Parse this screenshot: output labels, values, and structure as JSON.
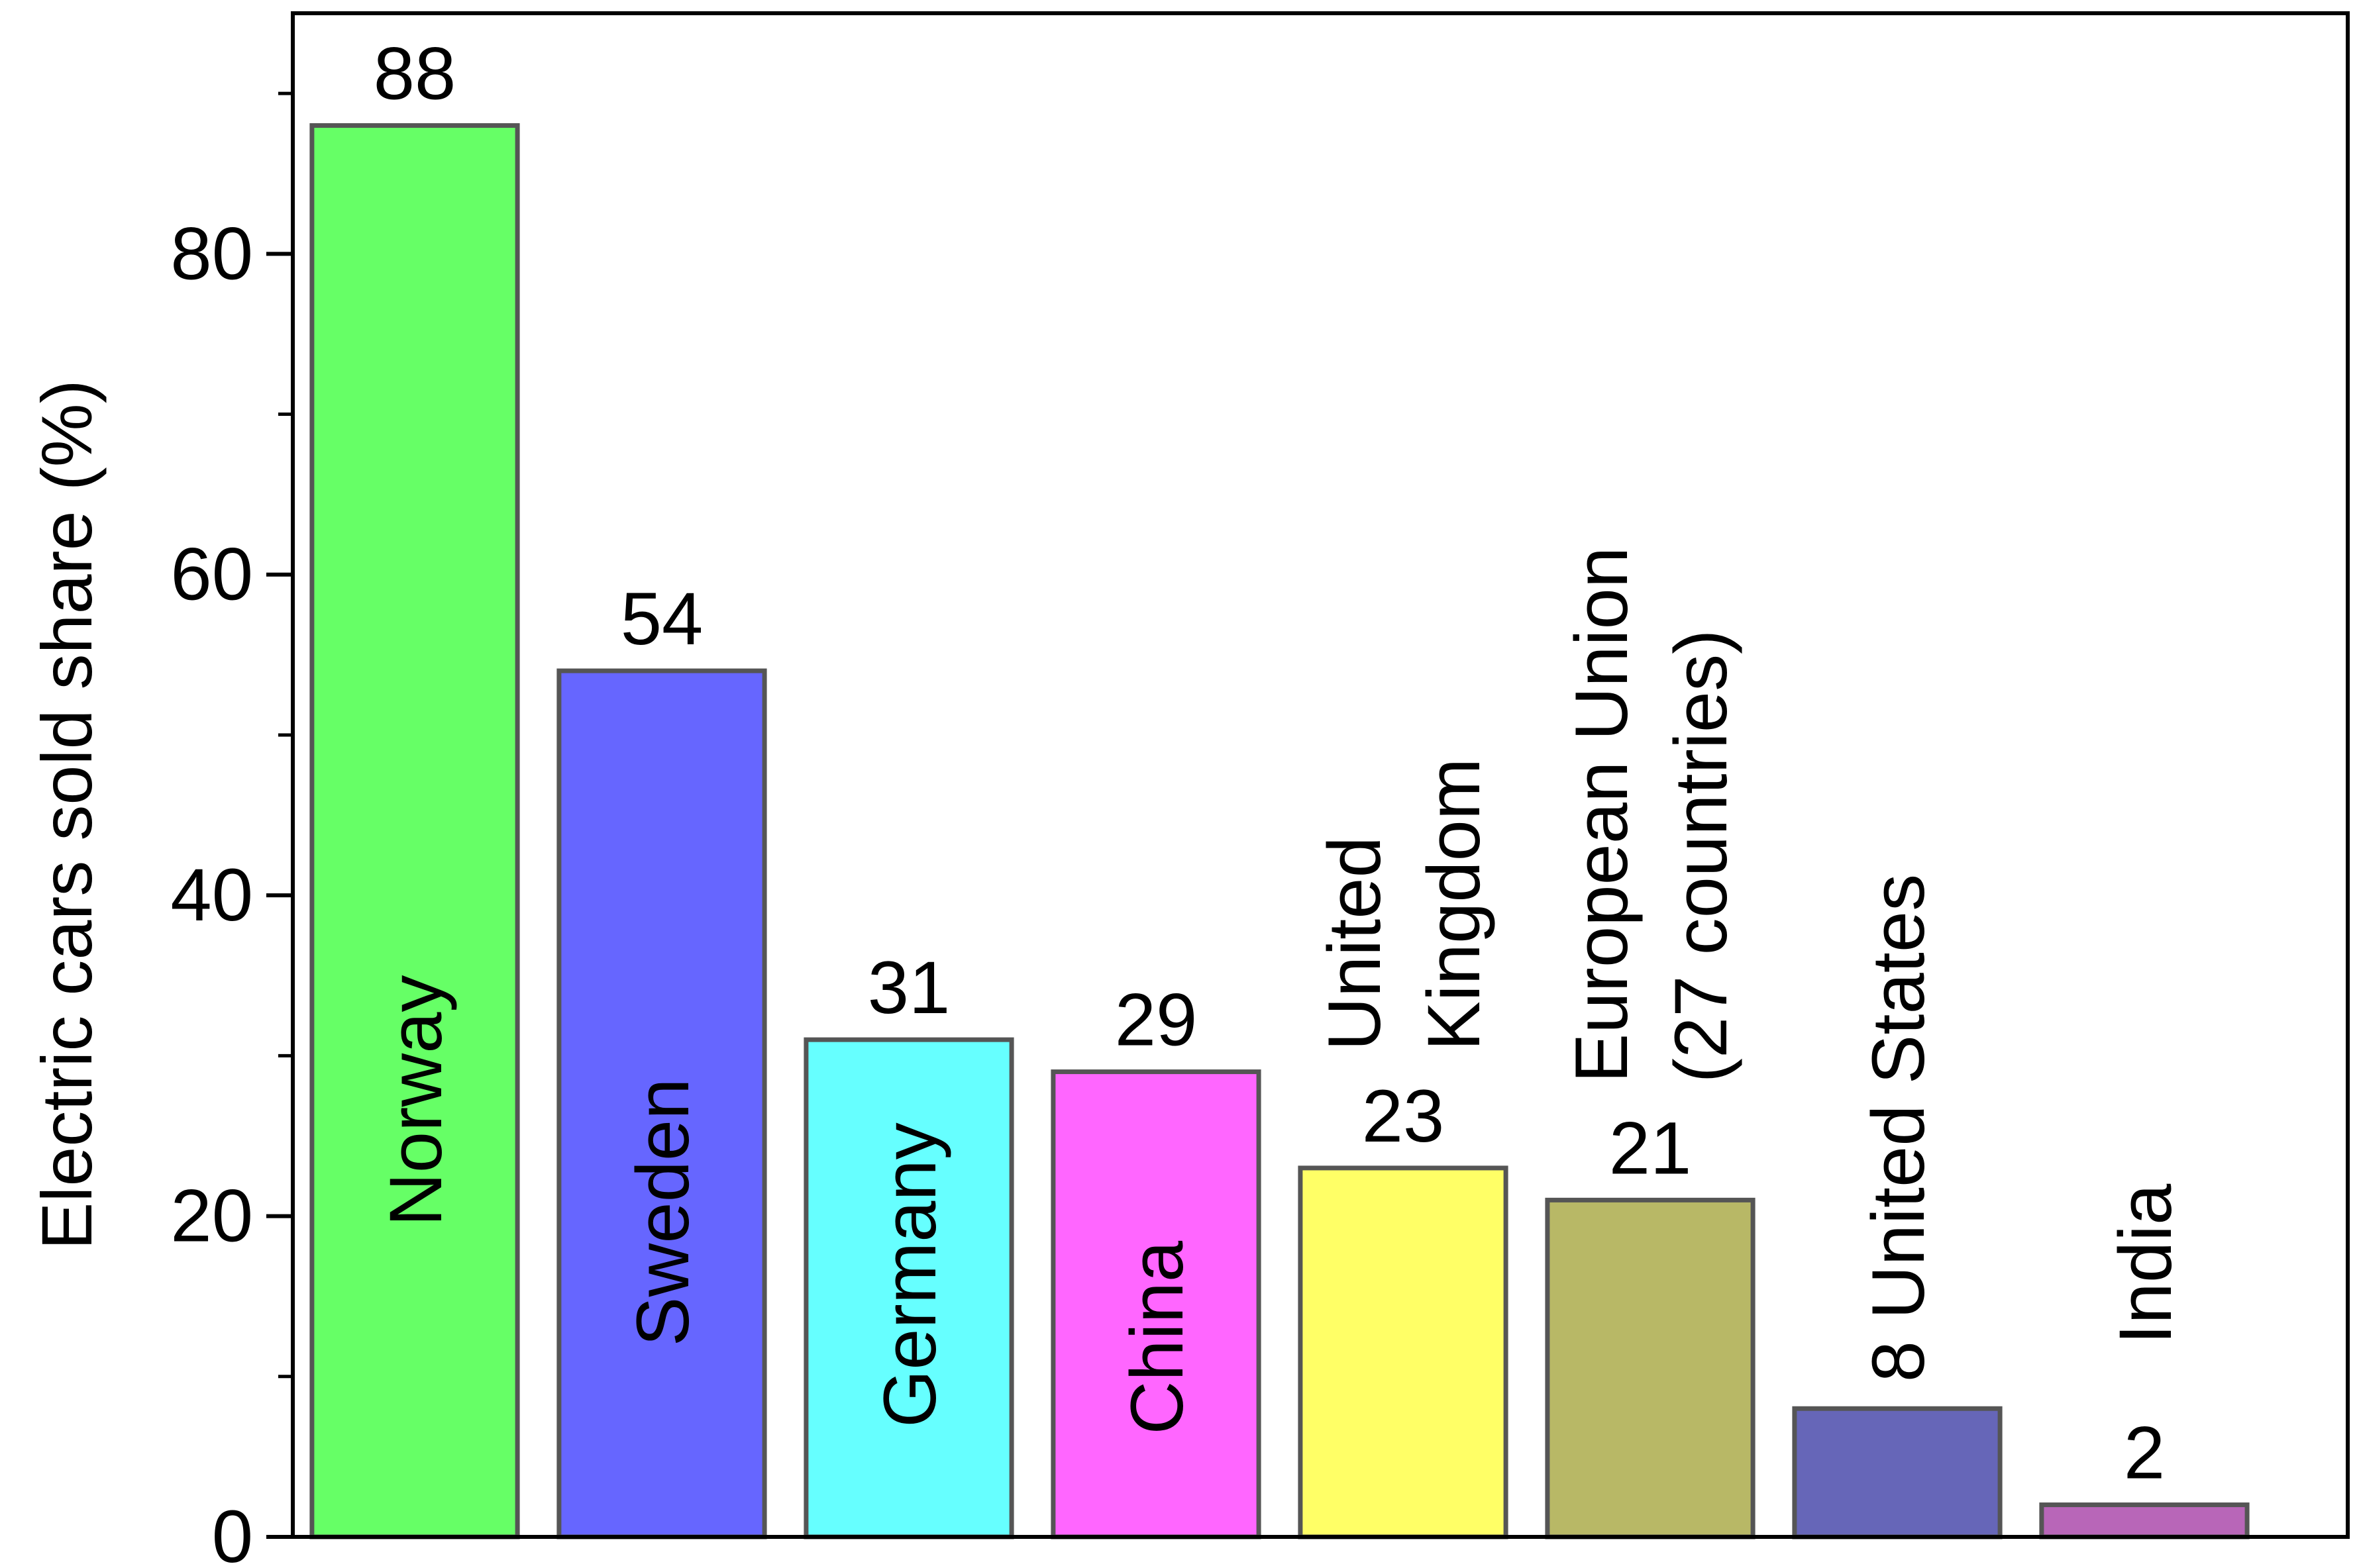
{
  "chart_data": {
    "type": "bar",
    "ylabel": "Electric cars sold share (%)",
    "ylim": [
      0,
      95
    ],
    "yticks": [
      0,
      20,
      40,
      60,
      80
    ],
    "y_minor_step": 10,
    "legend": "none",
    "grid": false,
    "categories": [
      "Norway",
      "Sweden",
      "Germany",
      "China",
      "United Kingdom",
      "European Union (27 countries)",
      "United States",
      "India"
    ],
    "category_label_lines": [
      [
        "Norway"
      ],
      [
        "Sweden"
      ],
      [
        "Germany"
      ],
      [
        "China"
      ],
      [
        "United",
        "Kingdom"
      ],
      [
        "European Union",
        "(27 countries)"
      ],
      [
        "United States"
      ],
      [
        "India"
      ]
    ],
    "category_label_placement": [
      "inside",
      "inside",
      "inside",
      "inside",
      "above",
      "above",
      "above",
      "above"
    ],
    "values": [
      88,
      54,
      31,
      29,
      23,
      21,
      8,
      2
    ],
    "value_labels": [
      "88",
      "54",
      "31",
      "29",
      "23",
      "21",
      "8",
      "2"
    ],
    "colors": [
      "#66FF66",
      "#6666FF",
      "#66FFFF",
      "#FF66FF",
      "#FFFF66",
      "#B8B866",
      "#6666B8",
      "#B866B8"
    ],
    "tick_labels": [
      "0",
      "20",
      "40",
      "60",
      "80"
    ]
  }
}
